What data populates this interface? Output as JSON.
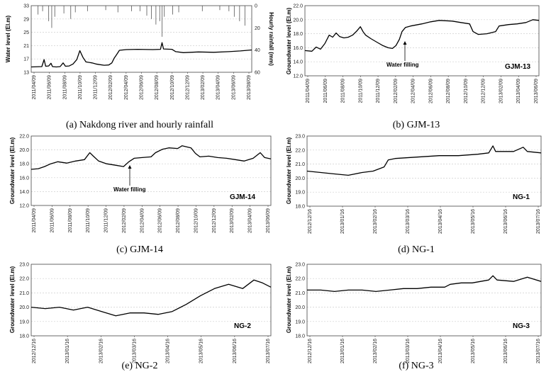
{
  "chart_data": [
    {
      "id": "a",
      "type": "line",
      "caption": "(a) Nakdong river and hourly rainfall",
      "ylabel": "Water level (El.m)",
      "ylabel_right": "Hourly rainfall (mm)",
      "ylim": [
        13,
        33
      ],
      "yticks": [
        "13",
        "17",
        "21",
        "25",
        "29",
        "33"
      ],
      "ylim_right": [
        0,
        60
      ],
      "yticks_right": [
        "0",
        "20",
        "40",
        "60"
      ],
      "xticks": [
        "2011/04/09",
        "2011/06/09",
        "2011/08/09",
        "2011/10/09",
        "2011/12/09",
        "2012/02/09",
        "2012/04/09",
        "2012/06/09",
        "2012/08/09",
        "2012/10/09",
        "2012/12/09",
        "2013/02/09",
        "2013/04/09",
        "2013/06/09",
        "2013/08/09"
      ],
      "xlim": [
        0,
        29
      ],
      "series_level": [
        [
          0,
          14.6
        ],
        [
          1.4,
          14.7
        ],
        [
          1.7,
          16.8
        ],
        [
          1.9,
          14.8
        ],
        [
          2.3,
          14.9
        ],
        [
          2.6,
          15.7
        ],
        [
          2.8,
          14.7
        ],
        [
          3.3,
          14.6
        ],
        [
          3.8,
          14.7
        ],
        [
          4.2,
          15.8
        ],
        [
          4.5,
          14.8
        ],
        [
          5.0,
          14.9
        ],
        [
          5.5,
          15.5
        ],
        [
          6.0,
          16.8
        ],
        [
          6.4,
          19.5
        ],
        [
          6.8,
          17.5
        ],
        [
          7.2,
          16.1
        ],
        [
          8.0,
          15.8
        ],
        [
          8.5,
          15.5
        ],
        [
          9.0,
          15.3
        ],
        [
          9.6,
          15.1
        ],
        [
          10.2,
          15.2
        ],
        [
          10.6,
          15.8
        ],
        [
          10.9,
          17.2
        ],
        [
          11.2,
          18.2
        ],
        [
          11.6,
          19.6
        ],
        [
          12.5,
          19.8
        ],
        [
          14,
          19.9
        ],
        [
          16,
          19.8
        ],
        [
          17,
          19.9
        ],
        [
          17.2,
          21.9
        ],
        [
          17.4,
          20.0
        ],
        [
          18.5,
          19.9
        ],
        [
          19,
          19.2
        ],
        [
          20,
          18.9
        ],
        [
          22,
          19.1
        ],
        [
          24,
          19.0
        ],
        [
          26,
          19.2
        ],
        [
          27.5,
          19.4
        ],
        [
          29,
          19.7
        ]
      ],
      "rain_spikes": [
        [
          0.9,
          8
        ],
        [
          1.5,
          5
        ],
        [
          2.3,
          14
        ],
        [
          2.7,
          20
        ],
        [
          3.1,
          10
        ],
        [
          4.3,
          7
        ],
        [
          5.2,
          12
        ],
        [
          5.8,
          6
        ],
        [
          7.4,
          5
        ],
        [
          9.8,
          4
        ],
        [
          11.4,
          6
        ],
        [
          13.2,
          5
        ],
        [
          14.3,
          5
        ],
        [
          15.2,
          9
        ],
        [
          15.8,
          12
        ],
        [
          16.4,
          17
        ],
        [
          16.9,
          14
        ],
        [
          17.2,
          28
        ],
        [
          17.5,
          10
        ],
        [
          18.6,
          8
        ],
        [
          19.4,
          6
        ],
        [
          22.5,
          5
        ],
        [
          24.8,
          4
        ],
        [
          26.0,
          5
        ],
        [
          26.7,
          10
        ],
        [
          27.4,
          14
        ],
        [
          28.1,
          18
        ]
      ]
    },
    {
      "id": "b",
      "type": "line",
      "caption": "(b) GJM-13",
      "well": "GJM-13",
      "ylabel": "Groundwater level (El.m)",
      "ylim": [
        12,
        22
      ],
      "yticks": [
        "12.0",
        "14.0",
        "16.0",
        "18.0",
        "20.0",
        "22.0"
      ],
      "xticks": [
        "2011/04/09",
        "2011/06/09",
        "2011/08/09",
        "2011/10/09",
        "2011/12/09",
        "2012/02/09",
        "2012/04/09",
        "2012/06/09",
        "2012/08/09",
        "2012/10/09",
        "2012/12/09",
        "2013/02/09",
        "2013/04/09",
        "2013/06/09"
      ],
      "xlim": [
        0,
        27
      ],
      "annotation": {
        "text": "Water filling",
        "x": 11.5,
        "y": 17.8
      },
      "values": [
        [
          0,
          15.6
        ],
        [
          0.8,
          15.5
        ],
        [
          1.3,
          16.1
        ],
        [
          1.8,
          15.8
        ],
        [
          2.3,
          16.6
        ],
        [
          2.8,
          17.8
        ],
        [
          3.2,
          17.5
        ],
        [
          3.6,
          18.1
        ],
        [
          4.0,
          17.6
        ],
        [
          4.5,
          17.4
        ],
        [
          5.0,
          17.5
        ],
        [
          5.5,
          17.8
        ],
        [
          6.0,
          18.4
        ],
        [
          6.4,
          19.0
        ],
        [
          6.7,
          18.3
        ],
        [
          7.0,
          17.8
        ],
        [
          7.6,
          17.3
        ],
        [
          8.3,
          16.8
        ],
        [
          9.0,
          16.3
        ],
        [
          9.6,
          16.0
        ],
        [
          10.1,
          15.9
        ],
        [
          10.5,
          16.3
        ],
        [
          10.9,
          17.2
        ],
        [
          11.2,
          18.3
        ],
        [
          11.6,
          18.9
        ],
        [
          12.2,
          19.1
        ],
        [
          13.5,
          19.4
        ],
        [
          14.5,
          19.7
        ],
        [
          15.5,
          19.9
        ],
        [
          17.0,
          19.8
        ],
        [
          18.0,
          19.6
        ],
        [
          19.0,
          19.4
        ],
        [
          19.4,
          18.3
        ],
        [
          20,
          17.9
        ],
        [
          21.0,
          18.0
        ],
        [
          22.0,
          18.3
        ],
        [
          22.4,
          19.1
        ],
        [
          23.5,
          19.3
        ],
        [
          24.5,
          19.4
        ],
        [
          25.5,
          19.6
        ],
        [
          26.3,
          20.0
        ],
        [
          27,
          19.9
        ]
      ]
    },
    {
      "id": "c",
      "type": "line",
      "caption": "(c) GJM-14",
      "well": "GJM-14",
      "ylabel": "Groundwater level (El.m)",
      "ylim": [
        12,
        22
      ],
      "yticks": [
        "12.0",
        "14.0",
        "16.0",
        "18.0",
        "20.0",
        "22.0"
      ],
      "xticks": [
        "2011/04/09",
        "2011/06/09",
        "2011/08/09",
        "2011/10/09",
        "2011/12/09",
        "2012/02/09",
        "2012/04/09",
        "2012/06/09",
        "2012/08/09",
        "2012/10/09",
        "2012/12/09",
        "2013/02/09",
        "2013/04/09",
        "2013/06/09"
      ],
      "xlim": [
        0,
        27
      ],
      "annotation": {
        "text": "Water filling",
        "x": 10.8,
        "y": 17.5
      },
      "values": [
        [
          0,
          17.2
        ],
        [
          0.8,
          17.3
        ],
        [
          1.5,
          17.6
        ],
        [
          2.2,
          18.0
        ],
        [
          3.0,
          18.3
        ],
        [
          4.0,
          18.1
        ],
        [
          5.0,
          18.4
        ],
        [
          6.0,
          18.6
        ],
        [
          6.6,
          19.6
        ],
        [
          7.0,
          19.1
        ],
        [
          7.6,
          18.4
        ],
        [
          8.5,
          18.0
        ],
        [
          9.5,
          17.8
        ],
        [
          10.4,
          17.6
        ],
        [
          11.0,
          18.3
        ],
        [
          11.6,
          18.8
        ],
        [
          12.5,
          18.9
        ],
        [
          13.5,
          19.0
        ],
        [
          14.0,
          19.6
        ],
        [
          14.8,
          20.1
        ],
        [
          15.5,
          20.3
        ],
        [
          16.5,
          20.2
        ],
        [
          17.0,
          20.6
        ],
        [
          18.0,
          20.3
        ],
        [
          18.5,
          19.5
        ],
        [
          19.0,
          19.0
        ],
        [
          20,
          19.1
        ],
        [
          21.0,
          18.9
        ],
        [
          22.0,
          18.8
        ],
        [
          23.0,
          18.6
        ],
        [
          24,
          18.4
        ],
        [
          25.0,
          18.8
        ],
        [
          25.8,
          19.6
        ],
        [
          26.3,
          18.9
        ],
        [
          27,
          18.7
        ]
      ]
    },
    {
      "id": "d",
      "type": "line",
      "caption": "(d) NG-1",
      "well": "NG-1",
      "ylabel": "Groundwater level (El.m)",
      "ylim": [
        18,
        23
      ],
      "yticks": [
        "18.0",
        "19.0",
        "20.0",
        "21.0",
        "22.0",
        "23.0"
      ],
      "xticks": [
        "2012/12/16",
        "2013/01/16",
        "2013/02/16",
        "2013/03/16",
        "2013/04/16",
        "2013/05/16",
        "2013/06/16",
        "2013/07/16"
      ],
      "xlim": [
        0,
        8.5
      ],
      "values": [
        [
          0,
          20.5
        ],
        [
          0.5,
          20.4
        ],
        [
          1.0,
          20.3
        ],
        [
          1.5,
          20.2
        ],
        [
          2.0,
          20.4
        ],
        [
          2.4,
          20.5
        ],
        [
          2.8,
          20.8
        ],
        [
          2.95,
          21.3
        ],
        [
          3.2,
          21.4
        ],
        [
          4.0,
          21.5
        ],
        [
          4.8,
          21.6
        ],
        [
          5.5,
          21.6
        ],
        [
          6.2,
          21.7
        ],
        [
          6.6,
          21.8
        ],
        [
          6.75,
          22.3
        ],
        [
          6.85,
          21.9
        ],
        [
          7.5,
          21.9
        ],
        [
          7.85,
          22.2
        ],
        [
          8.0,
          21.9
        ],
        [
          8.5,
          21.8
        ]
      ]
    },
    {
      "id": "e",
      "type": "line",
      "caption": "(e) NG-2",
      "well": "NG-2",
      "ylabel": "Groundwater level (El.m)",
      "ylim": [
        18,
        23
      ],
      "yticks": [
        "18.0",
        "19.0",
        "20.0",
        "21.0",
        "22.0",
        "23.0"
      ],
      "xticks": [
        "2012/12/16",
        "2013/01/16",
        "2013/02/16",
        "2013/03/16",
        "2013/04/16",
        "2013/05/16",
        "2013/06/16",
        "2013/07/16"
      ],
      "xlim": [
        0,
        8.5
      ],
      "values": [
        [
          0,
          20.0
        ],
        [
          0.5,
          19.9
        ],
        [
          1.0,
          20.0
        ],
        [
          1.5,
          19.8
        ],
        [
          2.0,
          20.0
        ],
        [
          2.5,
          19.7
        ],
        [
          3.0,
          19.4
        ],
        [
          3.5,
          19.6
        ],
        [
          4.0,
          19.6
        ],
        [
          4.5,
          19.5
        ],
        [
          5.0,
          19.7
        ],
        [
          5.5,
          20.2
        ],
        [
          6.0,
          20.8
        ],
        [
          6.5,
          21.3
        ],
        [
          7.0,
          21.6
        ],
        [
          7.5,
          21.3
        ],
        [
          7.9,
          21.9
        ],
        [
          8.2,
          21.7
        ],
        [
          8.5,
          21.4
        ]
      ]
    },
    {
      "id": "f",
      "type": "line",
      "caption": "(f) NG-3",
      "well": "NG-3",
      "ylabel": "Groundwater level (El.m)",
      "ylim": [
        18,
        23
      ],
      "yticks": [
        "18.0",
        "19.0",
        "20.0",
        "21.0",
        "22.0",
        "23.0"
      ],
      "xticks": [
        "2012/12/16",
        "2013/01/16",
        "2013/02/16",
        "2013/03/16",
        "2013/04/16",
        "2013/05/16",
        "2013/06/16",
        "2013/07/16"
      ],
      "xlim": [
        0,
        8.5
      ],
      "values": [
        [
          0,
          21.2
        ],
        [
          0.5,
          21.2
        ],
        [
          1.0,
          21.1
        ],
        [
          1.5,
          21.2
        ],
        [
          2.0,
          21.2
        ],
        [
          2.5,
          21.1
        ],
        [
          3.0,
          21.2
        ],
        [
          3.5,
          21.3
        ],
        [
          4.0,
          21.3
        ],
        [
          4.5,
          21.4
        ],
        [
          5.0,
          21.4
        ],
        [
          5.2,
          21.6
        ],
        [
          5.6,
          21.7
        ],
        [
          6.0,
          21.7
        ],
        [
          6.6,
          21.9
        ],
        [
          6.75,
          22.2
        ],
        [
          6.9,
          21.9
        ],
        [
          7.5,
          21.8
        ],
        [
          8.0,
          22.1
        ],
        [
          8.5,
          21.8
        ]
      ]
    }
  ]
}
